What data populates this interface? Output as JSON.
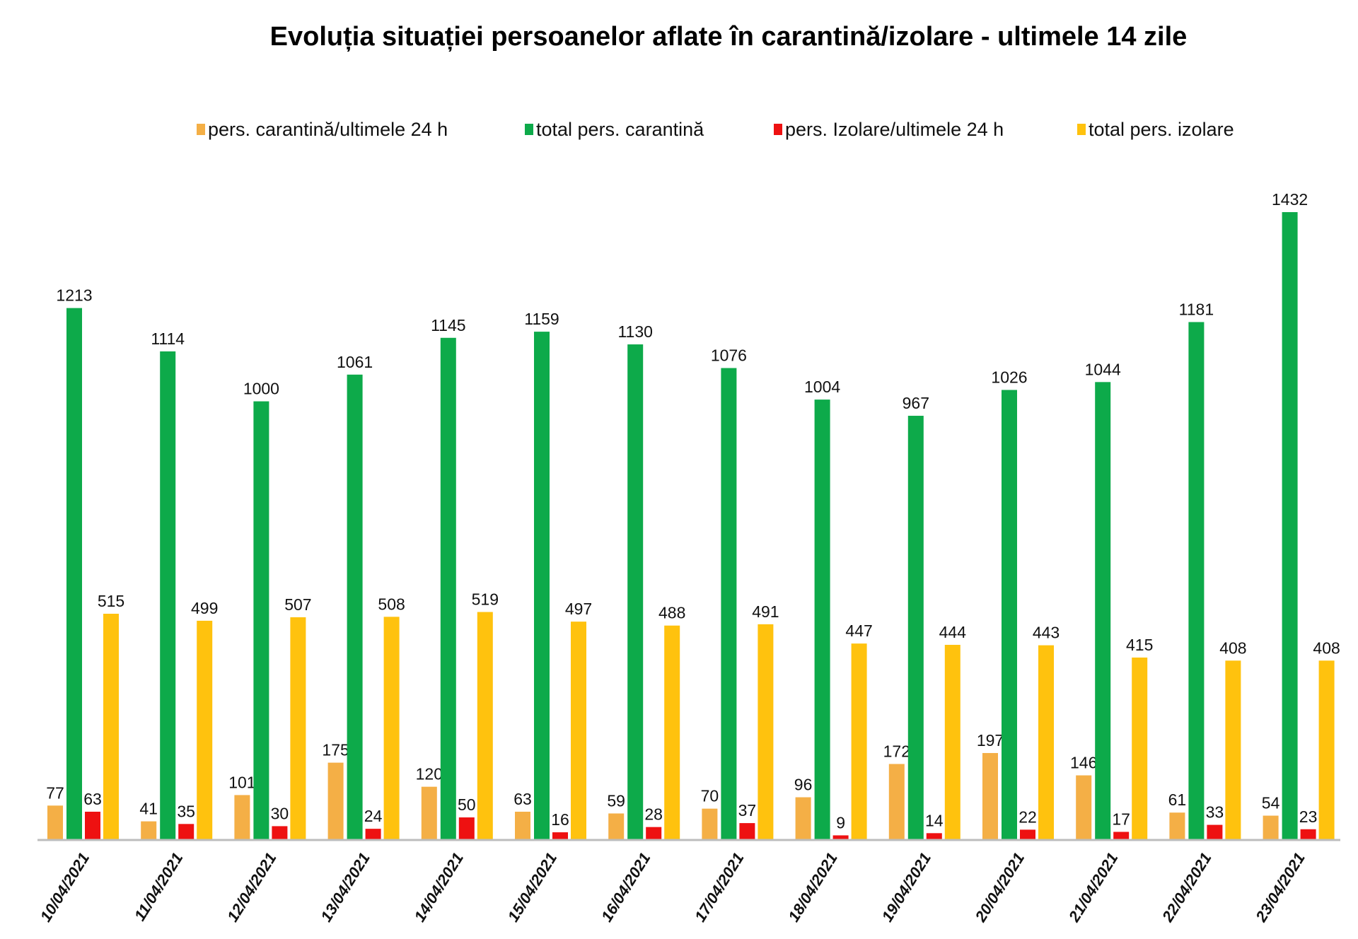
{
  "chart_data": {
    "type": "bar",
    "title": "Evoluția situației persoanelor aflate în carantină/izolare - ultimele 14 zile",
    "xlabel": "",
    "ylabel": "",
    "ylim": [
      0,
      1432
    ],
    "grid": false,
    "legend_position": "top",
    "categories": [
      "10/04/2021",
      "11/04/2021",
      "12/04/2021",
      "13/04/2021",
      "14/04/2021",
      "15/04/2021",
      "16/04/2021",
      "17/04/2021",
      "18/04/2021",
      "19/04/2021",
      "20/04/2021",
      "21/04/2021",
      "22/04/2021",
      "23/04/2021"
    ],
    "series": [
      {
        "name": "pers. carantină/ultimele 24 h",
        "color": "#F4AF46",
        "values": [
          77,
          41,
          101,
          175,
          120,
          63,
          59,
          70,
          96,
          172,
          197,
          146,
          61,
          54
        ]
      },
      {
        "name": "total pers. carantină",
        "color": "#0DAA4A",
        "values": [
          1213,
          1114,
          1000,
          1061,
          1145,
          1159,
          1130,
          1076,
          1004,
          967,
          1026,
          1044,
          1181,
          1432
        ]
      },
      {
        "name": "pers. Izolare/ultimele 24 h",
        "color": "#EE1111",
        "values": [
          63,
          35,
          30,
          24,
          50,
          16,
          28,
          37,
          9,
          14,
          22,
          17,
          33,
          23
        ]
      },
      {
        "name": "total pers. izolare",
        "color": "#FFC20E",
        "values": [
          515,
          499,
          507,
          508,
          519,
          497,
          488,
          491,
          447,
          444,
          443,
          415,
          408,
          408
        ]
      }
    ]
  }
}
